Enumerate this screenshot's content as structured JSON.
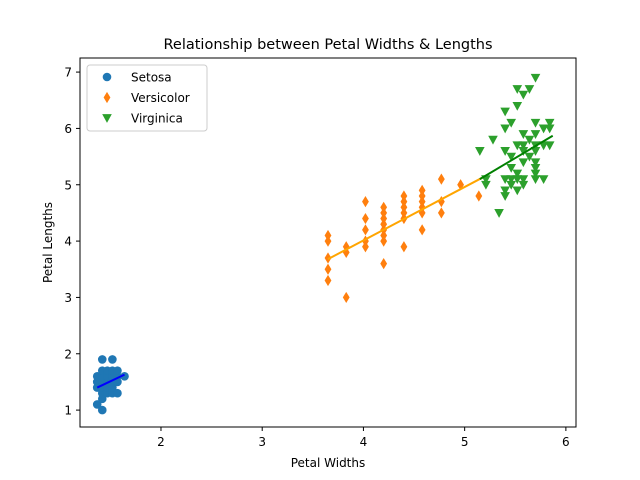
{
  "chart_data": {
    "type": "scatter",
    "title": "Relationship between Petal Widths & Lengths",
    "xlabel": "Petal Widths",
    "ylabel": "Petal Lengths",
    "xlim": [
      1.2,
      6.1
    ],
    "ylim": [
      0.7,
      7.25
    ],
    "xticks": [
      2,
      3,
      4,
      5,
      6
    ],
    "yticks": [
      1,
      2,
      3,
      4,
      5,
      6,
      7
    ],
    "grid": false,
    "legend_position": "top-left",
    "series": [
      {
        "name": "Setosa",
        "marker": "circle",
        "color": "#1f77b4",
        "fit_color": "#0000ff",
        "fit": [
          [
            1.37,
            1.4
          ],
          [
            1.64,
            1.63
          ]
        ],
        "points": [
          [
            1.37,
            1.1
          ],
          [
            1.37,
            1.4
          ],
          [
            1.37,
            1.5
          ],
          [
            1.37,
            1.6
          ],
          [
            1.42,
            1.0
          ],
          [
            1.42,
            1.2
          ],
          [
            1.42,
            1.3
          ],
          [
            1.42,
            1.4
          ],
          [
            1.42,
            1.5
          ],
          [
            1.42,
            1.6
          ],
          [
            1.42,
            1.7
          ],
          [
            1.42,
            1.9
          ],
          [
            1.47,
            1.3
          ],
          [
            1.47,
            1.4
          ],
          [
            1.47,
            1.5
          ],
          [
            1.47,
            1.6
          ],
          [
            1.47,
            1.7
          ],
          [
            1.52,
            1.3
          ],
          [
            1.52,
            1.4
          ],
          [
            1.52,
            1.5
          ],
          [
            1.52,
            1.6
          ],
          [
            1.52,
            1.7
          ],
          [
            1.52,
            1.9
          ],
          [
            1.57,
            1.3
          ],
          [
            1.57,
            1.5
          ],
          [
            1.57,
            1.6
          ],
          [
            1.57,
            1.7
          ],
          [
            1.64,
            1.6
          ]
        ]
      },
      {
        "name": "Versicolor",
        "marker": "thin_diamond",
        "color": "#ff7f0e",
        "fit_color": "#ffa500",
        "fit": [
          [
            3.65,
            3.68
          ],
          [
            5.2,
            5.15
          ]
        ],
        "points": [
          [
            3.65,
            3.3
          ],
          [
            3.65,
            3.5
          ],
          [
            3.65,
            3.7
          ],
          [
            3.65,
            4.0
          ],
          [
            3.65,
            4.1
          ],
          [
            3.83,
            3.0
          ],
          [
            3.83,
            3.8
          ],
          [
            3.83,
            3.9
          ],
          [
            4.02,
            3.9
          ],
          [
            4.02,
            4.0
          ],
          [
            4.02,
            4.2
          ],
          [
            4.02,
            4.4
          ],
          [
            4.02,
            4.7
          ],
          [
            4.2,
            3.6
          ],
          [
            4.2,
            4.0
          ],
          [
            4.2,
            4.1
          ],
          [
            4.2,
            4.2
          ],
          [
            4.2,
            4.3
          ],
          [
            4.2,
            4.4
          ],
          [
            4.2,
            4.5
          ],
          [
            4.2,
            4.6
          ],
          [
            4.4,
            3.9
          ],
          [
            4.4,
            4.4
          ],
          [
            4.4,
            4.5
          ],
          [
            4.4,
            4.6
          ],
          [
            4.4,
            4.7
          ],
          [
            4.4,
            4.8
          ],
          [
            4.58,
            4.2
          ],
          [
            4.58,
            4.5
          ],
          [
            4.58,
            4.6
          ],
          [
            4.58,
            4.7
          ],
          [
            4.58,
            4.8
          ],
          [
            4.58,
            4.9
          ],
          [
            4.77,
            4.5
          ],
          [
            4.77,
            4.7
          ],
          [
            4.77,
            5.1
          ],
          [
            4.96,
            5.0
          ],
          [
            5.14,
            4.8
          ]
        ]
      },
      {
        "name": "Virginica",
        "marker": "triangle_down",
        "color": "#2ca02c",
        "fit_color": "#008000",
        "fit": [
          [
            5.15,
            5.1
          ],
          [
            5.87,
            5.87
          ]
        ],
        "points": [
          [
            5.15,
            5.6
          ],
          [
            5.21,
            5.0
          ],
          [
            5.21,
            5.1
          ],
          [
            5.28,
            5.8
          ],
          [
            5.34,
            4.5
          ],
          [
            5.4,
            4.8
          ],
          [
            5.4,
            4.9
          ],
          [
            5.4,
            5.1
          ],
          [
            5.4,
            5.6
          ],
          [
            5.4,
            6.0
          ],
          [
            5.4,
            6.3
          ],
          [
            5.46,
            5.0
          ],
          [
            5.46,
            5.1
          ],
          [
            5.46,
            5.3
          ],
          [
            5.46,
            5.5
          ],
          [
            5.46,
            6.1
          ],
          [
            5.52,
            4.9
          ],
          [
            5.52,
            5.1
          ],
          [
            5.52,
            5.2
          ],
          [
            5.52,
            5.7
          ],
          [
            5.52,
            6.4
          ],
          [
            5.52,
            6.7
          ],
          [
            5.58,
            5.0
          ],
          [
            5.58,
            5.1
          ],
          [
            5.58,
            5.4
          ],
          [
            5.58,
            5.6
          ],
          [
            5.58,
            5.7
          ],
          [
            5.58,
            5.9
          ],
          [
            5.58,
            6.6
          ],
          [
            5.64,
            5.5
          ],
          [
            5.64,
            5.8
          ],
          [
            5.64,
            6.7
          ],
          [
            5.7,
            5.1
          ],
          [
            5.7,
            5.2
          ],
          [
            5.7,
            5.3
          ],
          [
            5.7,
            5.4
          ],
          [
            5.7,
            5.6
          ],
          [
            5.7,
            5.7
          ],
          [
            5.7,
            5.9
          ],
          [
            5.7,
            6.1
          ],
          [
            5.7,
            6.9
          ],
          [
            5.78,
            5.1
          ],
          [
            5.78,
            5.7
          ],
          [
            5.78,
            6.0
          ],
          [
            5.84,
            5.7
          ],
          [
            5.84,
            6.0
          ],
          [
            5.84,
            6.1
          ]
        ]
      }
    ]
  }
}
